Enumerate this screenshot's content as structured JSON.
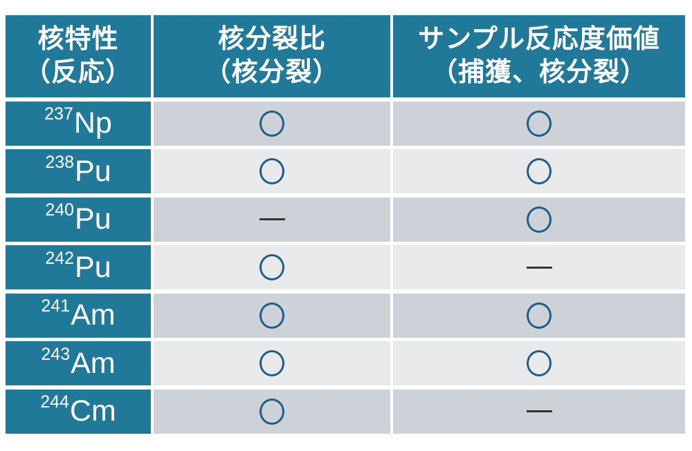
{
  "colors": {
    "page_background": "#FFFFFF",
    "header_background": "#21799A",
    "header_text": "#FFFFFF",
    "row_dark_background": "#CDD1D8",
    "row_light_background": "#E7E9EB",
    "circle_stroke": "#1F5C86",
    "dash_color": "#333333"
  },
  "symbols": {
    "circle": "○",
    "dash": "—"
  },
  "table": {
    "headers": [
      {
        "line1": "核特性",
        "line2": "（反応）"
      },
      {
        "line1": "核分裂比",
        "line2": "（核分裂）"
      },
      {
        "line1": "サンプル反応度価値",
        "line2": "（捕獲、核分裂）"
      }
    ],
    "rows": [
      {
        "mass": "237",
        "element": "Np",
        "cells": [
          "circle",
          "circle"
        ]
      },
      {
        "mass": "238",
        "element": "Pu",
        "cells": [
          "circle",
          "circle"
        ]
      },
      {
        "mass": "240",
        "element": "Pu",
        "cells": [
          "dash",
          "circle"
        ]
      },
      {
        "mass": "242",
        "element": "Pu",
        "cells": [
          "circle",
          "dash"
        ]
      },
      {
        "mass": "241",
        "element": "Am",
        "cells": [
          "circle",
          "circle"
        ]
      },
      {
        "mass": "243",
        "element": "Am",
        "cells": [
          "circle",
          "circle"
        ]
      },
      {
        "mass": "244",
        "element": "Cm",
        "cells": [
          "circle",
          "dash"
        ]
      }
    ]
  },
  "chart_data": {
    "type": "table",
    "columns": [
      "核特性（反応）",
      "核分裂比（核分裂）",
      "サンプル反応度価値（捕獲、核分裂）"
    ],
    "rows": [
      [
        "237Np",
        "○",
        "○"
      ],
      [
        "238Pu",
        "○",
        "○"
      ],
      [
        "240Pu",
        "—",
        "○"
      ],
      [
        "242Pu",
        "○",
        "—"
      ],
      [
        "241Am",
        "○",
        "○"
      ],
      [
        "243Am",
        "○",
        "○"
      ],
      [
        "244Cm",
        "○",
        "—"
      ]
    ]
  }
}
